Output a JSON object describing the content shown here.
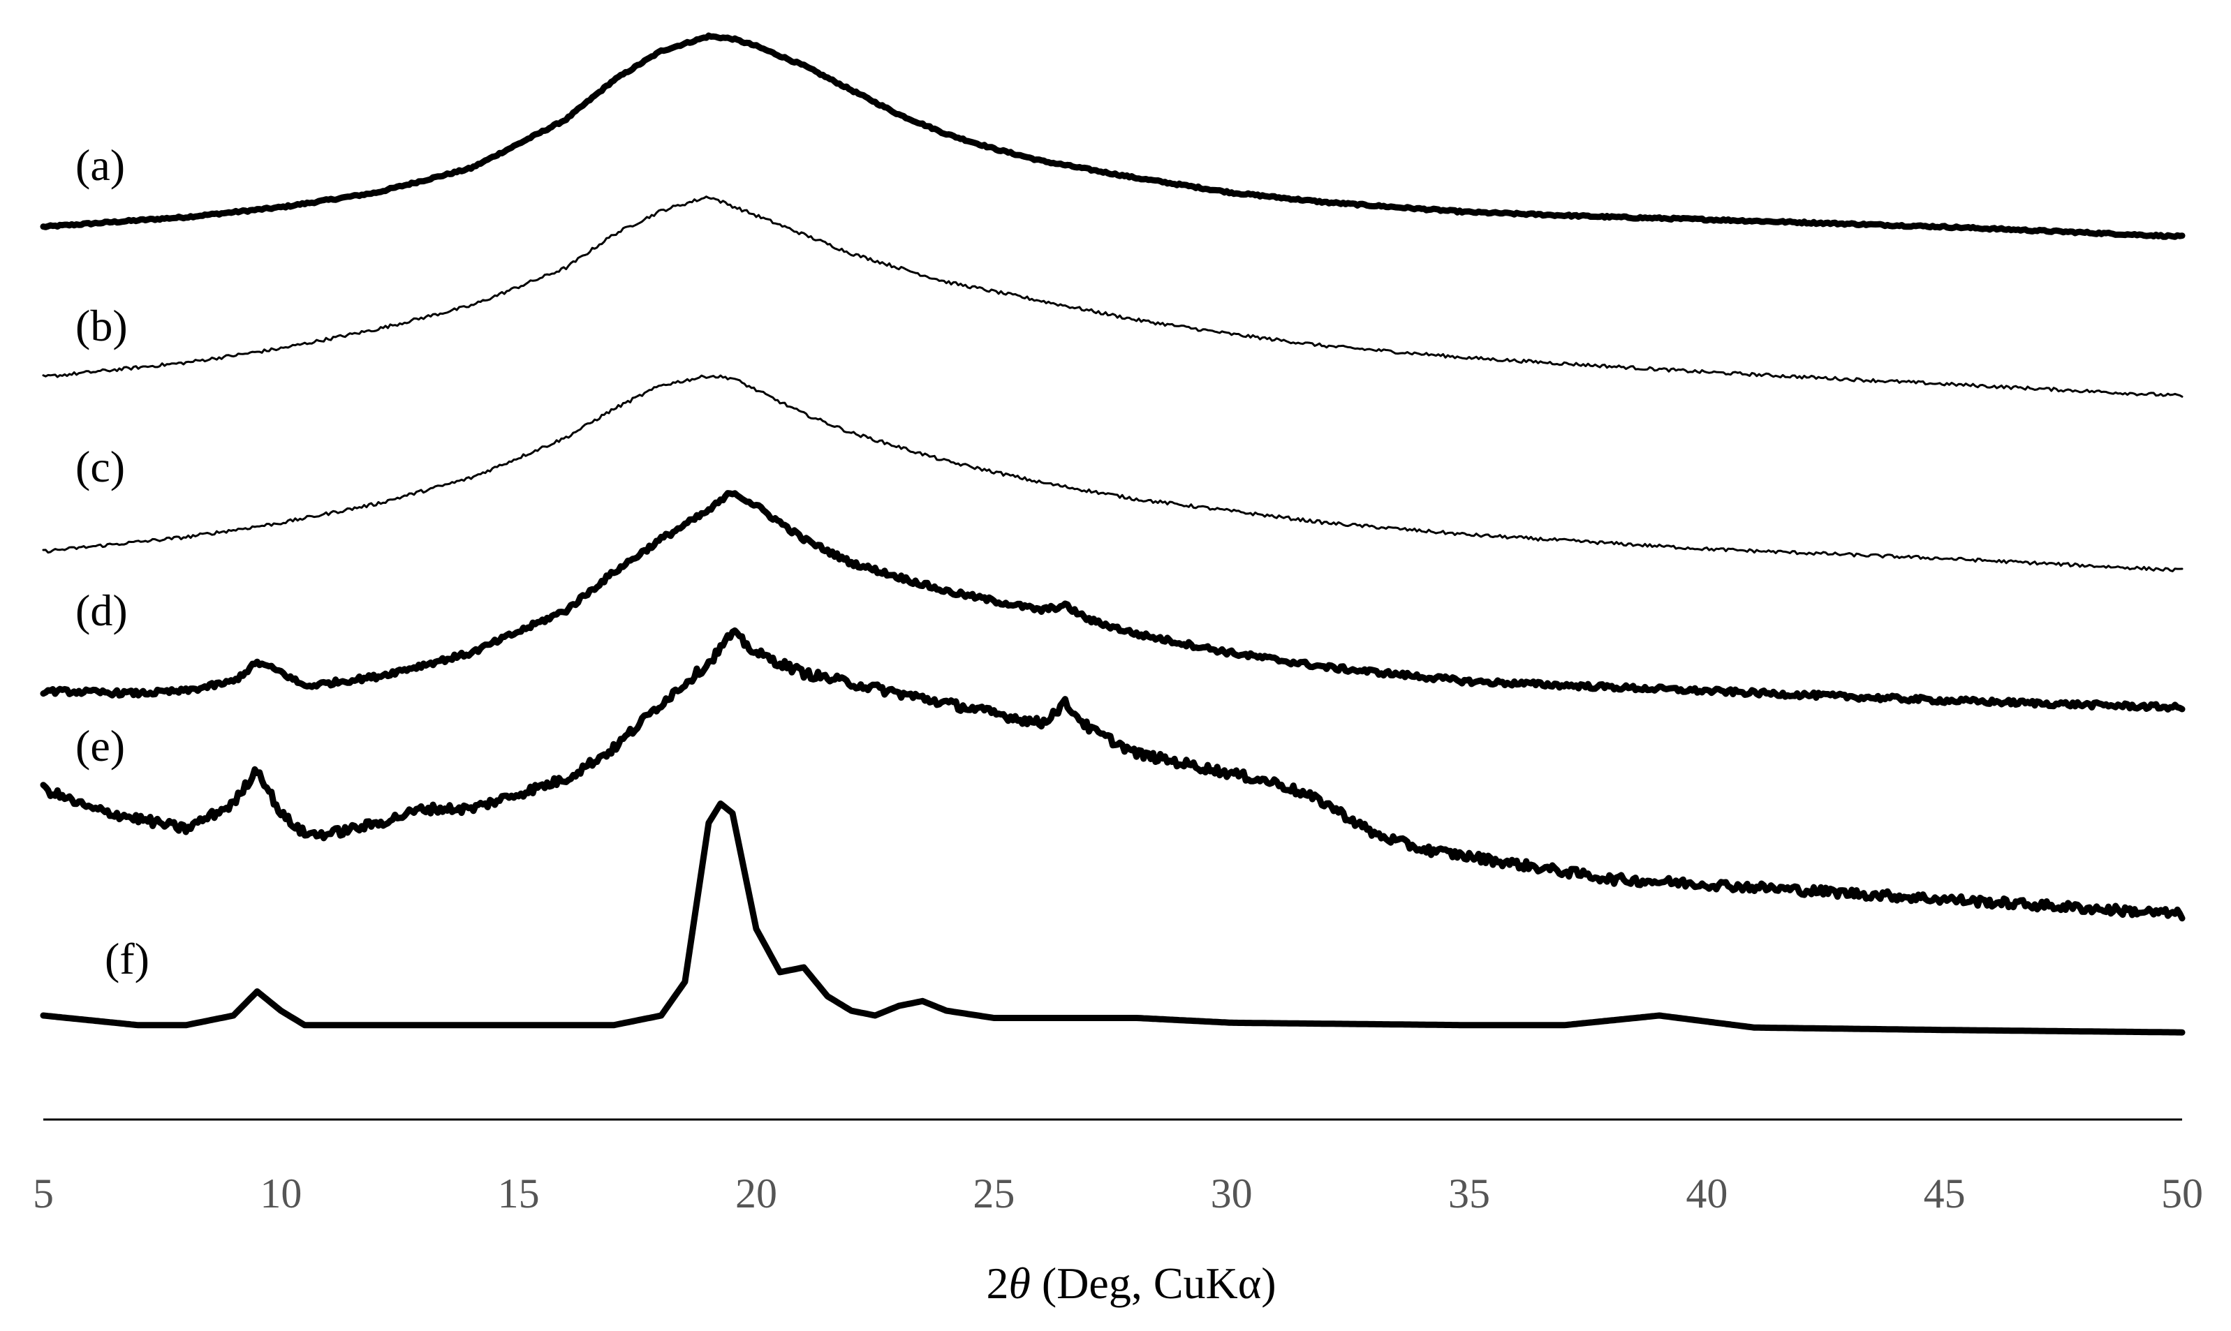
{
  "chart_data": {
    "type": "line",
    "title": "",
    "xlabel_prefix": "2",
    "xlabel_symbol": "θ",
    "xlabel_suffix": " (Deg, CuKα)",
    "xlim": [
      5,
      50
    ],
    "xticks": [
      "5",
      "10",
      "15",
      "20",
      "25",
      "30",
      "35",
      "40",
      "45",
      "50"
    ],
    "ylabel": "",
    "y_axis_shown": false,
    "grid": false,
    "legend": "none",
    "series": [
      {
        "label": "(a)",
        "stroke": "heavy",
        "noise": 0.4,
        "x": [
          5,
          8,
          10,
          12,
          14,
          16,
          17,
          18,
          19,
          19.5,
          20,
          21,
          22,
          23,
          24,
          25,
          26,
          28,
          30,
          32,
          35,
          38,
          40,
          45,
          50
        ],
        "y": [
          0,
          4,
          8,
          14,
          24,
          44,
          60,
          72,
          78,
          77,
          74,
          66,
          56,
          46,
          38,
          32,
          27,
          20,
          14,
          10,
          6,
          4,
          3,
          0,
          -4
        ]
      },
      {
        "label": "(b)",
        "stroke": "thin",
        "noise": 0.7,
        "x": [
          5,
          8,
          10,
          12,
          14,
          16,
          17,
          18,
          19,
          19.5,
          20,
          21,
          22,
          24,
          26,
          28,
          30,
          32,
          35,
          40,
          45,
          50
        ],
        "y": [
          0,
          6,
          12,
          20,
          30,
          46,
          60,
          70,
          76,
          72,
          68,
          60,
          52,
          40,
          32,
          24,
          18,
          13,
          8,
          2,
          -3,
          -8
        ]
      },
      {
        "label": "(c)",
        "stroke": "thin",
        "noise": 0.7,
        "x": [
          5,
          8,
          10,
          12,
          14,
          16,
          17,
          18,
          19,
          19.5,
          20,
          21,
          22,
          24,
          26,
          28,
          30,
          32,
          35,
          40,
          45,
          50
        ],
        "y": [
          0,
          6,
          12,
          20,
          31,
          48,
          60,
          70,
          74,
          73,
          68,
          58,
          50,
          38,
          29,
          22,
          17,
          12,
          7,
          1,
          -3,
          -8
        ]
      },
      {
        "label": "(d)",
        "stroke": "heavy",
        "noise": 1.1,
        "x": [
          5,
          7,
          8,
          9,
          9.5,
          10,
          10.5,
          12,
          14,
          16,
          17,
          18,
          19,
          19.5,
          20,
          21,
          22,
          23,
          24,
          25,
          26,
          26.5,
          27,
          28,
          30,
          32,
          35,
          40,
          45,
          50
        ],
        "y": [
          0,
          -1,
          0,
          4,
          12,
          8,
          2,
          6,
          16,
          34,
          50,
          64,
          76,
          84,
          78,
          64,
          54,
          48,
          42,
          38,
          34,
          36,
          30,
          24,
          16,
          10,
          4,
          0,
          -4,
          -7
        ]
      },
      {
        "label": "(e)",
        "stroke": "heavy",
        "noise": 1.8,
        "x": [
          5,
          6,
          7,
          8,
          9,
          9.5,
          10,
          10.5,
          11,
          12,
          13,
          14,
          15,
          16,
          17,
          18,
          19,
          19.5,
          20,
          21,
          22,
          23,
          24,
          25,
          26,
          26.5,
          27,
          28,
          30,
          31,
          32,
          33,
          34,
          36,
          38,
          40,
          45,
          50
        ],
        "y": [
          0,
          -8,
          -12,
          -16,
          -6,
          8,
          -10,
          -18,
          -18,
          -14,
          -8,
          -8,
          -2,
          4,
          16,
          34,
          50,
          62,
          54,
          46,
          42,
          38,
          34,
          30,
          26,
          34,
          24,
          14,
          6,
          2,
          -6,
          -18,
          -24,
          -30,
          -36,
          -38,
          -44,
          -50
        ]
      },
      {
        "label": "(f)",
        "stroke": "heavy",
        "noise": 0,
        "x": [
          5,
          7,
          8,
          9,
          9.5,
          10,
          10.5,
          11,
          14,
          17,
          18,
          18.5,
          19,
          19.25,
          19.5,
          20,
          20.5,
          21,
          21.5,
          22,
          22.5,
          23,
          23.5,
          24,
          25,
          28,
          30,
          35,
          37,
          39,
          41,
          45,
          50
        ],
        "y": [
          0,
          -4,
          -4,
          0,
          10,
          2,
          -4,
          -4,
          -4,
          -4,
          0,
          14,
          80,
          88,
          84,
          36,
          18,
          20,
          8,
          2,
          0,
          4,
          6,
          2,
          -1,
          -1,
          -3,
          -4,
          -4,
          0,
          -5,
          -6,
          -7
        ]
      }
    ]
  }
}
